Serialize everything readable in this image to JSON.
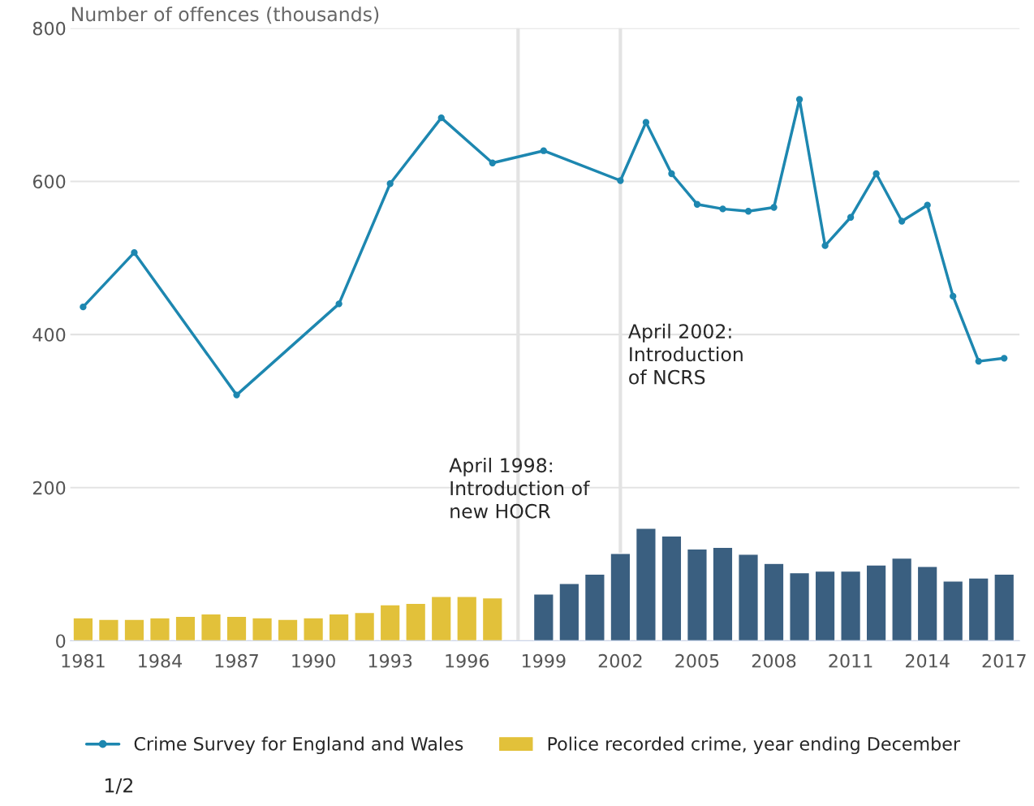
{
  "chart_data": {
    "type": "bar",
    "ylabel": "Number of offences (thousands)",
    "xlim": [
      1980.5,
      2017.6
    ],
    "xticks": [
      1981,
      1984,
      1987,
      1990,
      1993,
      1996,
      1999,
      2002,
      2005,
      2008,
      2011,
      2014,
      2017
    ],
    "ylim": [
      0,
      800
    ],
    "yticks": [
      0,
      200,
      400,
      600,
      800
    ],
    "grid": "y",
    "legend": "bottom",
    "marker": "circle",
    "series": [
      {
        "name": "Police recorded crime, year ending December",
        "color": "#e2c13a",
        "x": [
          1981,
          1982,
          1983,
          1984,
          1985,
          1986,
          1987,
          1988,
          1989,
          1990,
          1991,
          1992,
          1993,
          1994,
          1995,
          1996,
          1997
        ],
        "values": [
          30,
          28,
          28,
          30,
          32,
          35,
          32,
          30,
          28,
          30,
          35,
          37,
          47,
          49,
          58,
          58,
          56
        ]
      },
      {
        "color": "#3a5f80",
        "x": [
          1999,
          2000,
          2001,
          2002,
          2003,
          2004,
          2005,
          2006,
          2007,
          2008,
          2009,
          2010,
          2011,
          2012,
          2013,
          2014,
          2015,
          2016,
          2017
        ],
        "values": [
          61,
          75,
          87,
          114,
          147,
          137,
          120,
          122,
          113,
          101,
          89,
          91,
          91,
          99,
          108,
          97,
          78,
          82,
          87
        ]
      },
      {
        "name": "Crime Survey for England and Wales",
        "type": "line",
        "color": "#1d87b0",
        "x": [
          1981,
          1983,
          1987,
          1991,
          1993,
          1995,
          1997,
          1999,
          2002,
          2003,
          2004,
          2005,
          2006,
          2007,
          2008,
          2009,
          2010,
          2011,
          2012,
          2013,
          2014,
          2015,
          2016,
          2017
        ],
        "values": [
          436,
          507,
          321,
          440,
          597,
          683,
          624,
          640,
          601,
          677,
          610,
          570,
          564,
          561,
          566,
          707,
          516,
          553,
          610,
          548,
          569,
          450,
          365,
          369
        ]
      }
    ],
    "ref_lines": [
      {
        "axis": "x",
        "value": 1998,
        "label": "April 1998:\nIntroduction of\nnew HOCR",
        "color": "#e3e3e3"
      },
      {
        "axis": "x",
        "value": 2002,
        "label": "April 2002:\nIntroduction\nof NCRS",
        "color": "#e3e3e3"
      }
    ],
    "annotations": [
      "1/2"
    ]
  }
}
